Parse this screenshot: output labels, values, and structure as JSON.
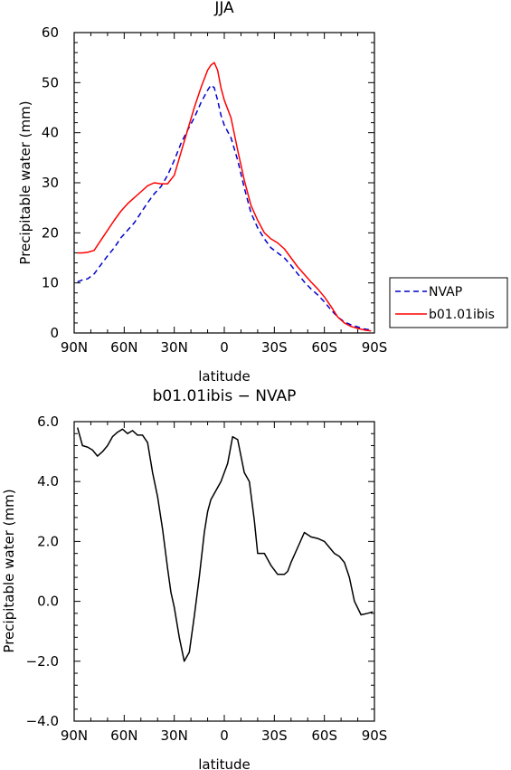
{
  "chart_data": [
    {
      "type": "line",
      "title": "JJA",
      "xlabel": "latitude",
      "ylabel": "Precipitable water (mm)",
      "x_tick_labels": [
        "90N",
        "60N",
        "30N",
        "0",
        "30S",
        "60S",
        "90S"
      ],
      "x_ticks": [
        90,
        60,
        30,
        0,
        -30,
        -60,
        -90
      ],
      "xlim": [
        90,
        -90
      ],
      "y_ticks": [
        0,
        10,
        20,
        30,
        40,
        50,
        60
      ],
      "ylim": [
        0,
        60
      ],
      "legend_position": "right",
      "series": [
        {
          "name": "NVAP",
          "color": "#0000cc",
          "dash": "dashed",
          "x": [
            88,
            85,
            82,
            78,
            74,
            70,
            66,
            62,
            58,
            54,
            50,
            46,
            42,
            38,
            34,
            30,
            26,
            22,
            18,
            14,
            10,
            8,
            6,
            4,
            2,
            0,
            -4,
            -8,
            -12,
            -16,
            -20,
            -24,
            -28,
            -32,
            -36,
            -40,
            -44,
            -48,
            -52,
            -56,
            -60,
            -64,
            -68,
            -72,
            -76,
            -80,
            -84,
            -88
          ],
          "y": [
            10.2,
            10.6,
            10.8,
            11.8,
            13.6,
            15.4,
            17.0,
            19.0,
            20.5,
            22.0,
            24.0,
            26.0,
            27.8,
            29.2,
            31.5,
            34.5,
            37.8,
            40.5,
            43.0,
            46.0,
            48.5,
            49.5,
            49.0,
            46.5,
            43.5,
            41.5,
            39.0,
            34.5,
            29.0,
            24.0,
            21.0,
            18.8,
            17.0,
            16.0,
            15.0,
            13.5,
            11.8,
            10.2,
            8.8,
            7.6,
            6.2,
            4.6,
            3.2,
            2.2,
            1.6,
            1.2,
            0.8,
            0.6
          ]
        },
        {
          "name": "b01.01ibis",
          "color": "#ff0000",
          "dash": "solid",
          "x": [
            88,
            85,
            82,
            78,
            74,
            70,
            66,
            62,
            58,
            54,
            50,
            46,
            42,
            38,
            34,
            30,
            26,
            22,
            18,
            14,
            10,
            8,
            6,
            4,
            2,
            0,
            -4,
            -8,
            -12,
            -16,
            -20,
            -24,
            -28,
            -32,
            -36,
            -40,
            -44,
            -48,
            -52,
            -56,
            -60,
            -64,
            -68,
            -72,
            -76,
            -80,
            -84,
            -88
          ],
          "y": [
            16.0,
            16.0,
            16.1,
            16.5,
            18.5,
            20.5,
            22.5,
            24.3,
            25.8,
            27.0,
            28.2,
            29.4,
            30.0,
            29.8,
            29.8,
            31.5,
            36.0,
            40.5,
            45.0,
            49.0,
            52.5,
            53.5,
            54.0,
            52.5,
            49.0,
            46.5,
            43.0,
            36.5,
            30.5,
            25.5,
            22.5,
            20.0,
            18.8,
            18.0,
            16.8,
            15.0,
            13.2,
            11.7,
            10.2,
            8.8,
            7.2,
            5.3,
            3.2,
            2.0,
            1.3,
            0.9,
            0.6,
            0.4
          ]
        }
      ]
    },
    {
      "type": "line",
      "title": "b01.01ibis − NVAP",
      "xlabel": "latitude",
      "ylabel": "Precipitable water (mm)",
      "x_tick_labels": [
        "90N",
        "60N",
        "30N",
        "0",
        "30S",
        "60S",
        "90S"
      ],
      "x_ticks": [
        90,
        60,
        30,
        0,
        -30,
        -60,
        -90
      ],
      "xlim": [
        90,
        -90
      ],
      "y_ticks": [
        -4.0,
        -2.0,
        0.0,
        2.0,
        4.0,
        6.0
      ],
      "y_tick_labels": [
        "−4.0",
        "−2.0",
        "0.0",
        "2.0",
        "4.0",
        "6.0"
      ],
      "ylim": [
        -4.0,
        6.0
      ],
      "series": [
        {
          "color": "#000000",
          "dash": "solid",
          "x": [
            88,
            85,
            82,
            79,
            76,
            73,
            70,
            67,
            64,
            61,
            58,
            55,
            52,
            49,
            46,
            43,
            40,
            37,
            34,
            32,
            30,
            27,
            24,
            21,
            18,
            15,
            12,
            10,
            8,
            5,
            2,
            -2,
            -5,
            -8,
            -12,
            -15,
            -18,
            -20,
            -24,
            -28,
            -32,
            -36,
            -38,
            -40,
            -44,
            -48,
            -52,
            -56,
            -60,
            -63,
            -66,
            -69,
            -72,
            -75,
            -78,
            -82,
            -86,
            -89
          ],
          "y": [
            5.8,
            5.2,
            5.15,
            5.05,
            4.85,
            5.0,
            5.2,
            5.5,
            5.65,
            5.75,
            5.6,
            5.7,
            5.55,
            5.55,
            5.3,
            4.3,
            3.5,
            2.4,
            1.1,
            0.3,
            -0.2,
            -1.2,
            -2.0,
            -1.7,
            -0.5,
            0.8,
            2.3,
            3.0,
            3.4,
            3.7,
            4.0,
            4.6,
            5.5,
            5.4,
            4.3,
            4.0,
            2.7,
            1.6,
            1.6,
            1.2,
            0.9,
            0.9,
            1.0,
            1.3,
            1.8,
            2.3,
            2.15,
            2.1,
            2.0,
            1.8,
            1.6,
            1.5,
            1.3,
            0.8,
            0.0,
            -0.45,
            -0.4,
            -0.35
          ]
        }
      ]
    }
  ]
}
